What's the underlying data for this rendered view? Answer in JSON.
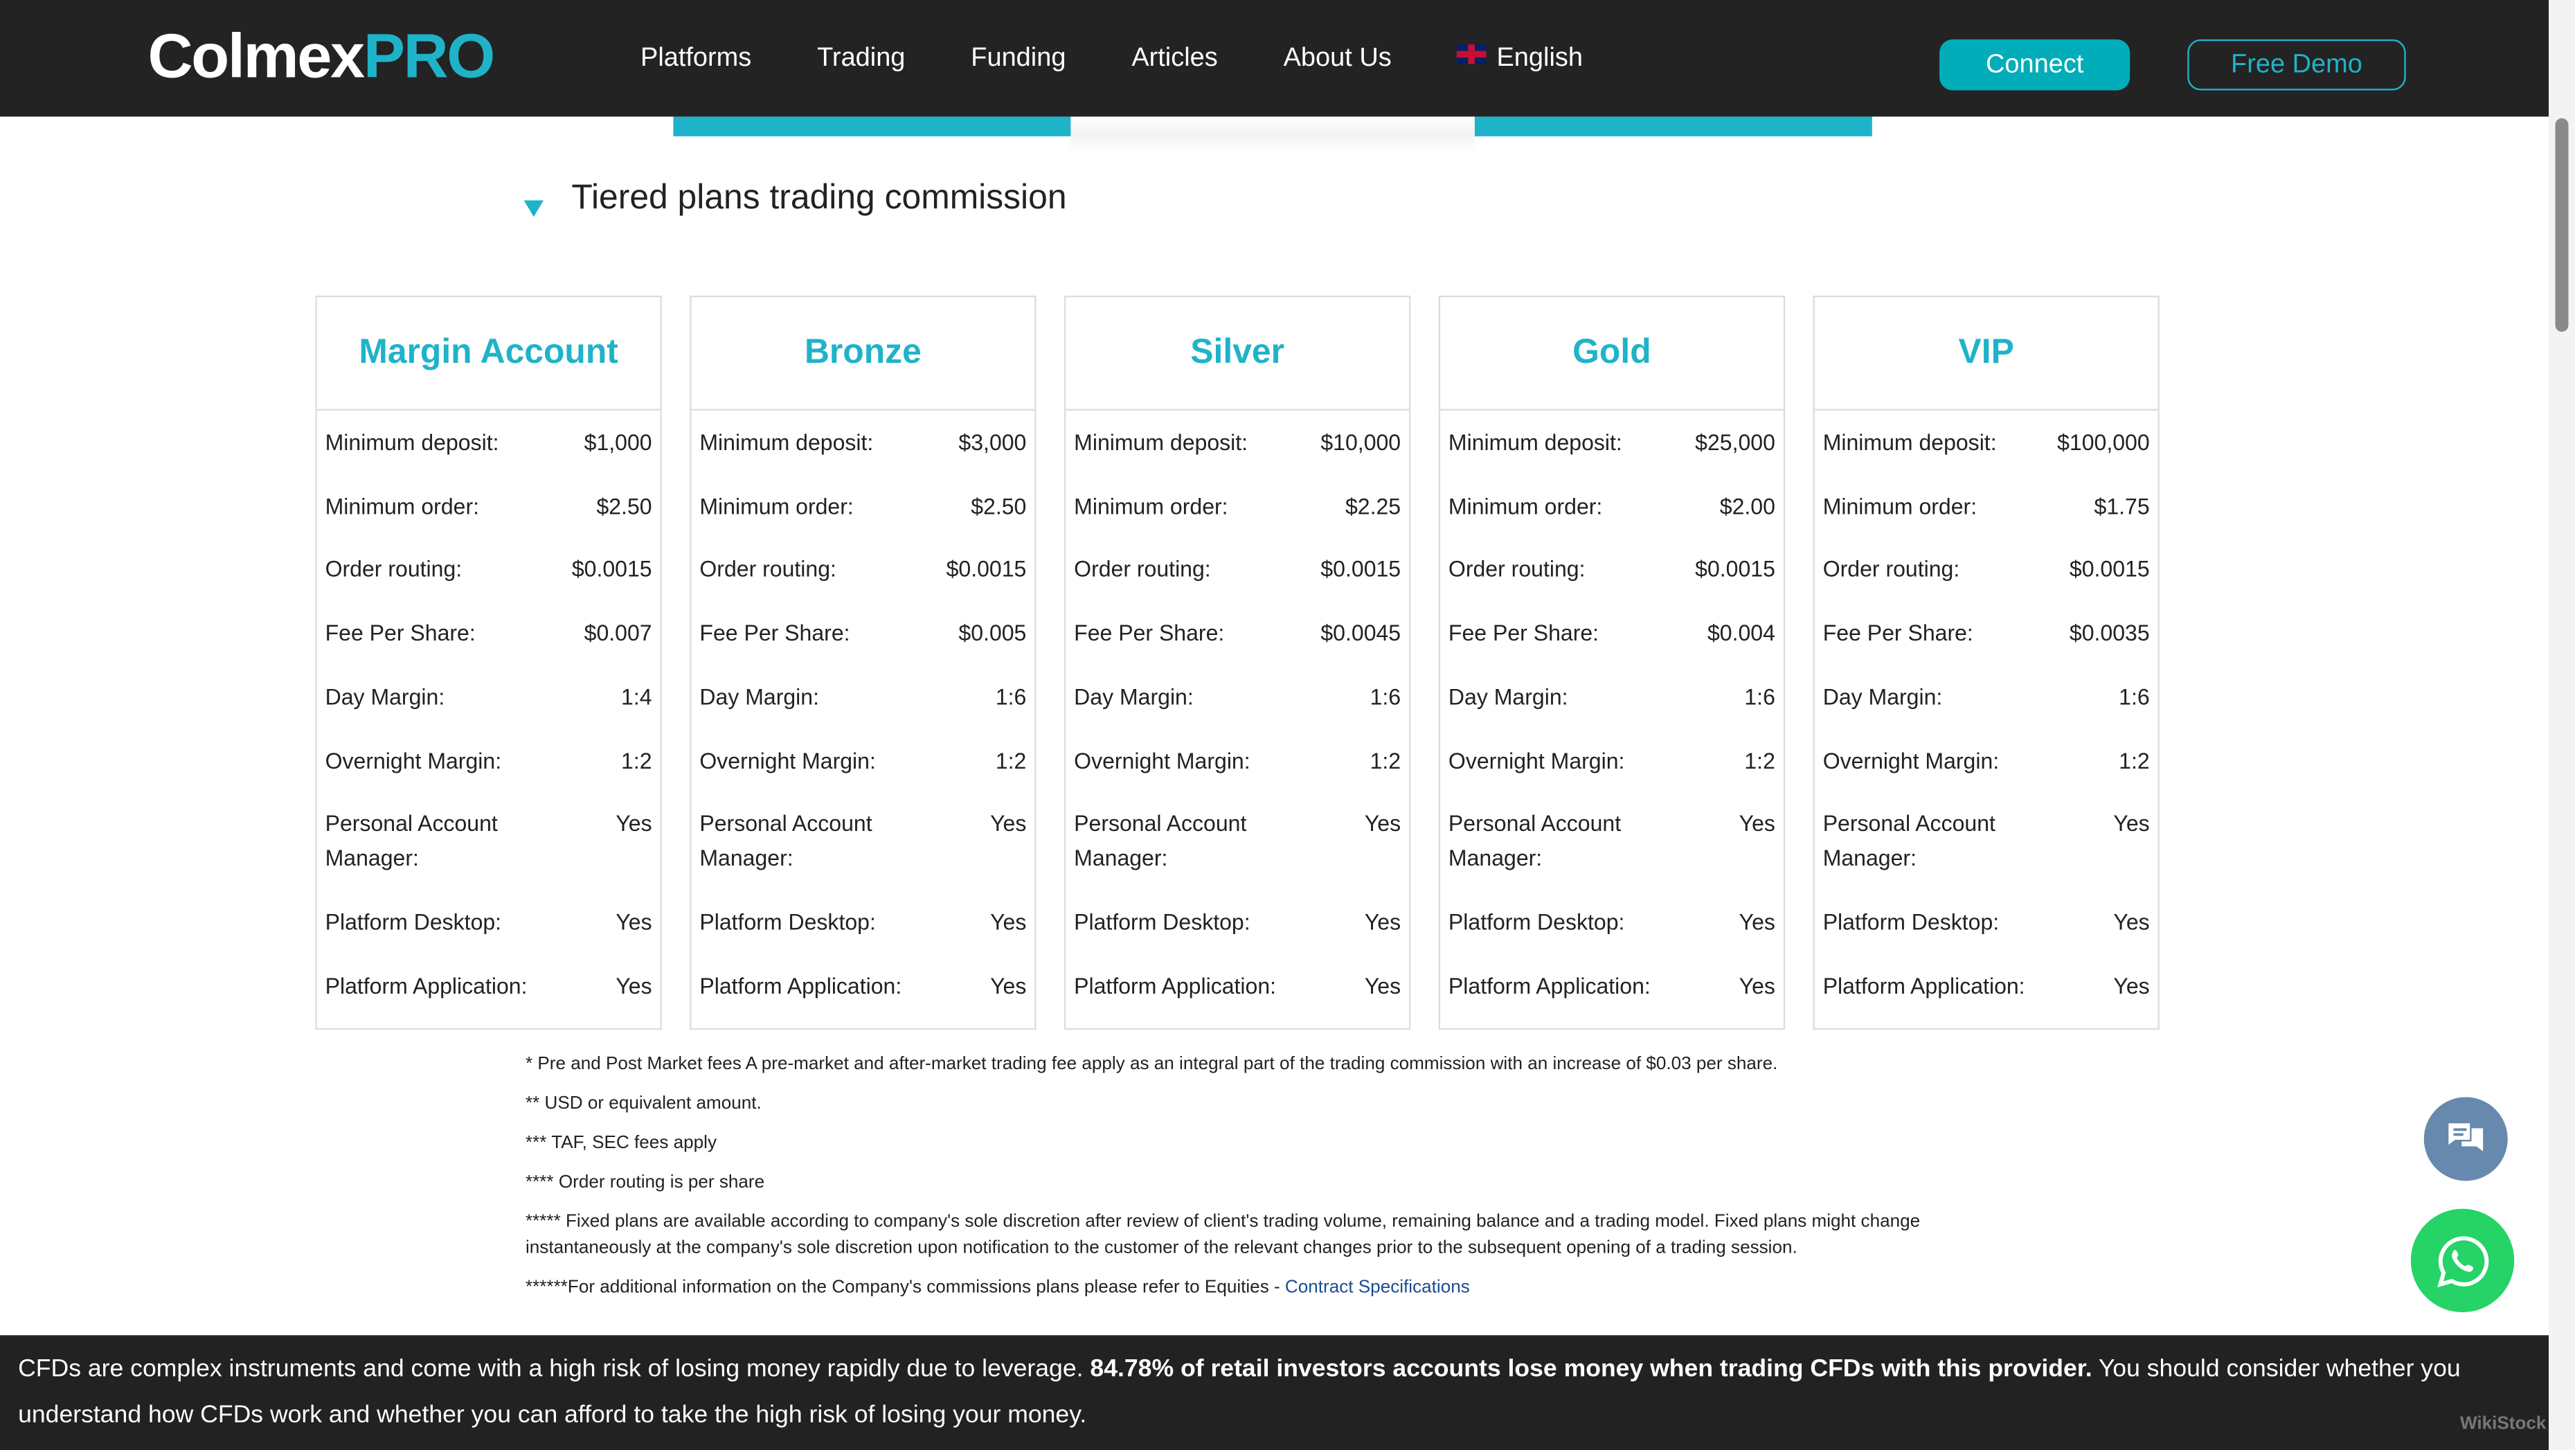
{
  "header": {
    "logo_main": "Colmex",
    "logo_pro": "PRO",
    "menu": [
      "Platforms",
      "Trading",
      "Funding",
      "Articles",
      "About Us"
    ],
    "language": "English",
    "connect": "Connect",
    "free_demo": "Free Demo"
  },
  "section_title": "Tiered plans trading commission",
  "row_labels": [
    "Minimum deposit:",
    "Minimum order:",
    "Order routing:",
    "Fee Per Share:",
    "Day Margin:",
    "Overnight Margin:",
    "Personal Account Manager:",
    "Platform Desktop:",
    "Platform Application:"
  ],
  "plans": [
    {
      "name": "Margin Account",
      "values": [
        "$1,000",
        "$2.50",
        "$0.0015",
        "$0.007",
        "1:4",
        "1:2",
        "Yes",
        "Yes",
        "Yes"
      ]
    },
    {
      "name": "Bronze",
      "values": [
        "$3,000",
        "$2.50",
        "$0.0015",
        "$0.005",
        "1:6",
        "1:2",
        "Yes",
        "Yes",
        "Yes"
      ]
    },
    {
      "name": "Silver",
      "values": [
        "$10,000",
        "$2.25",
        "$0.0015",
        "$0.0045",
        "1:6",
        "1:2",
        "Yes",
        "Yes",
        "Yes"
      ]
    },
    {
      "name": "Gold",
      "values": [
        "$25,000",
        "$2.00",
        "$0.0015",
        "$0.004",
        "1:6",
        "1:2",
        "Yes",
        "Yes",
        "Yes"
      ]
    },
    {
      "name": "VIP",
      "values": [
        "$100,000",
        "$1.75",
        "$0.0015",
        "$0.0035",
        "1:6",
        "1:2",
        "Yes",
        "Yes",
        "Yes"
      ]
    }
  ],
  "notes": [
    "* Pre and Post Market fees A pre-market and after-market trading fee apply as an integral part of the trading commission with an increase of $0.03 per share.",
    "** USD or equivalent amount.",
    "*** TAF, SEC fees apply",
    "**** Order routing is per share",
    "***** Fixed plans are available according to company's sole discretion after review of client's trading volume, remaining balance and a trading model. Fixed plans might change instantaneously at the company's sole discretion upon notification to the customer of the relevant changes prior to the subsequent opening of a trading session."
  ],
  "note_last": "******For additional information on the Company's commissions plans please refer to Equities - ",
  "note_last_link": "Contract Specifications",
  "banner": {
    "part1": "CFDs are complex instruments and come with a high risk of losing money rapidly due to leverage. ",
    "bold": "84.78% of retail investors accounts lose money when trading CFDs with this provider.",
    "part2": " You should consider whether you understand how CFDs work and whether you can afford to take the high risk of losing your money."
  },
  "watermark": "WikiStock",
  "colors": {
    "accent": "#1fb3c9",
    "nav_bg": "#232323",
    "chat": "#6789ad",
    "whatsapp": "#25d366"
  }
}
